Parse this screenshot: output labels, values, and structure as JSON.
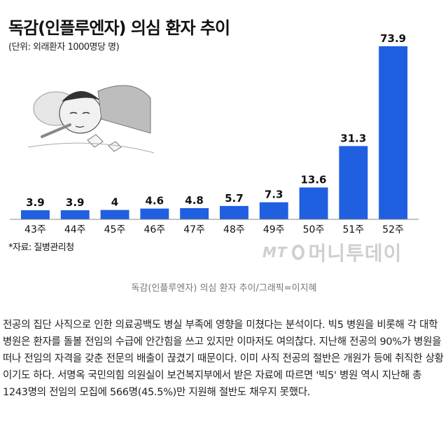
{
  "chart_data": {
    "type": "bar",
    "title": "독감(인플루엔자) 의심 환자 추이",
    "subtitle": "(단위: 외래환자 1000명당 명)",
    "categories": [
      "43주",
      "44주",
      "45주",
      "46주",
      "47주",
      "48주",
      "49주",
      "50주",
      "51주",
      "52주"
    ],
    "values": [
      3.9,
      3.9,
      4,
      4.6,
      4.8,
      5.7,
      7.3,
      13.6,
      31.3,
      73.9
    ],
    "value_labels": [
      "3.9",
      "3.9",
      "4",
      "4.6",
      "4.8",
      "5.7",
      "7.3",
      "13.6",
      "31.3",
      "73.9"
    ],
    "ylim": [
      0,
      73.9
    ],
    "grid": false,
    "legend": "none",
    "source": "*자료: 질병관리청",
    "colors": {
      "bar": "#1f5fe0",
      "bar_light": "#2f72f0"
    }
  },
  "watermark": {
    "mt": "MT",
    "name": "머니투데이"
  },
  "caption": "독감(인플루엔자) 의심 환자 추이/그래픽=이지혜",
  "article": {
    "text": "전공의 집단 사직으로 인한 의료공백도 병실 부족에 영향을 미쳤다는 분석이다. 빅5 병원을 비롯해 각 대학병원은 환자를 돌볼 전임의 수급에 안간힘을 쓰고 있지만 이마저도 여의찮다. 지난해 전공의 90%가 병원을 떠나 전임의 자격을 갖춘 전문의 배출이 끊겼기 때문이다. 이미 사직 전공의 절반은 개원가 등에 취직한 상황이기도 하다. 서명옥 국민의힘 의원실이 보건복지부에서 받은 자료에 따르면 '빅5' 병원 역시 지난해 총 1243명의 전임의 모집에 566명(45.5%)만 지원해 절반도 채우지 못했다."
  }
}
